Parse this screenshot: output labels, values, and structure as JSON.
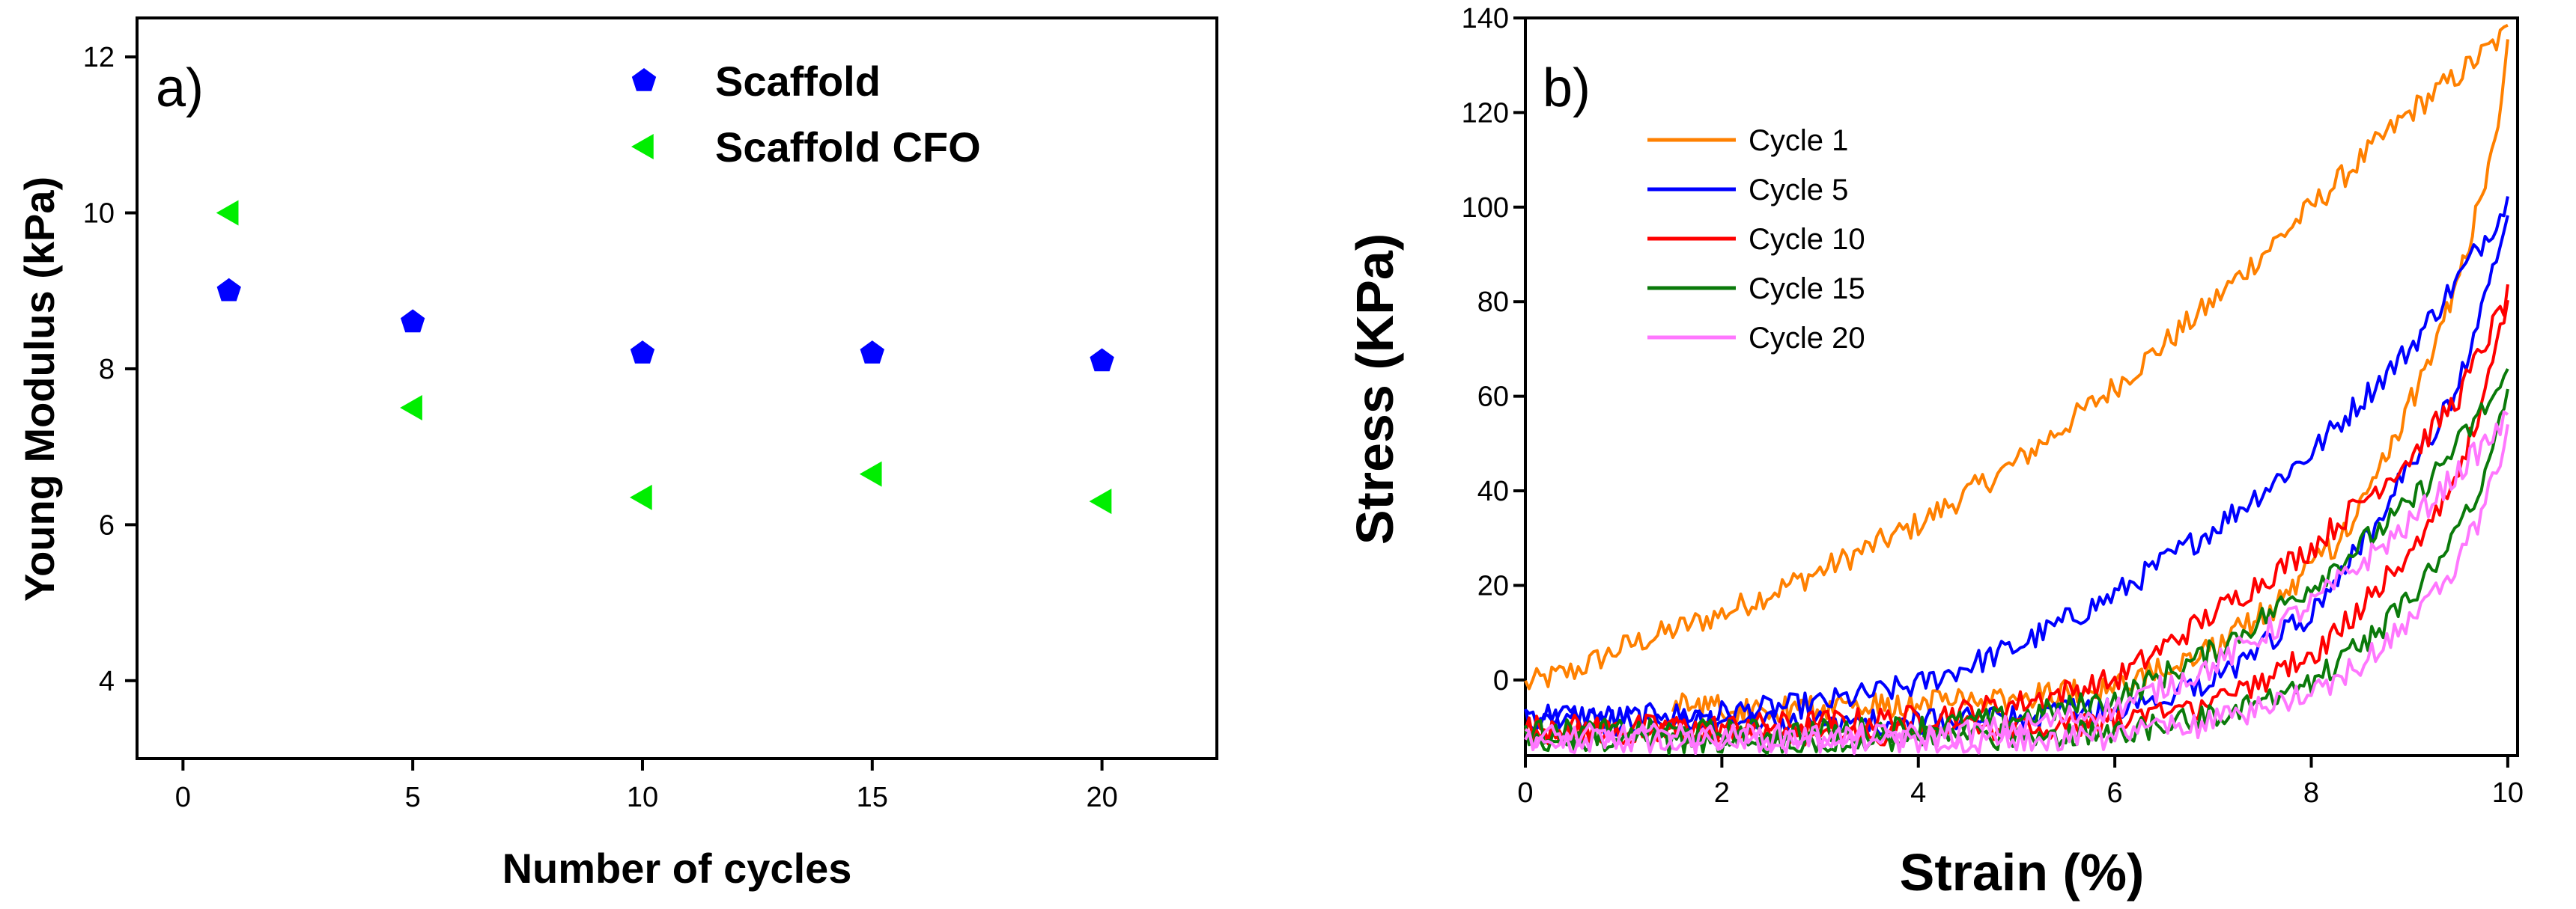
{
  "chart_data": [
    {
      "panel": "a)",
      "type": "scatter",
      "xlabel": "Number of cycles",
      "ylabel": "Young Modulus (kPa)",
      "xlim": [
        -1,
        22.5
      ],
      "ylim": [
        3,
        12.5
      ],
      "xticks": [
        0,
        5,
        10,
        15,
        20
      ],
      "yticks": [
        4,
        6,
        8,
        10,
        12
      ],
      "legend_position": "top-right",
      "series": [
        {
          "name": "Scaffold",
          "marker": "pentagon",
          "color": "#0000ff",
          "x": [
            1,
            5,
            10,
            15,
            20
          ],
          "y": [
            9.0,
            8.6,
            8.2,
            8.2,
            8.1
          ]
        },
        {
          "name": "Scaffold CFO",
          "marker": "triangle-left",
          "color": "#00ee00",
          "x": [
            1,
            5,
            10,
            15,
            20
          ],
          "y": [
            10.0,
            7.5,
            6.35,
            6.65,
            6.3
          ]
        }
      ]
    },
    {
      "panel": "b)",
      "type": "line",
      "xlabel": "Strain (%)",
      "ylabel": "Stress (KPa)",
      "xlim": [
        0,
        10.1
      ],
      "ylim": [
        -16,
        140
      ],
      "xticks": [
        0,
        2,
        4,
        6,
        8,
        10
      ],
      "yticks": [
        0,
        20,
        40,
        60,
        80,
        100,
        120,
        140
      ],
      "legend_position": "top-left",
      "series": [
        {
          "name": "Cycle 1",
          "color": "#ff8000",
          "loading": [
            [
              0,
              -1
            ],
            [
              0.5,
              2
            ],
            [
              1,
              7
            ],
            [
              2,
              14
            ],
            [
              3,
              23
            ],
            [
              4,
              33
            ],
            [
              5,
              46
            ],
            [
              6,
              62
            ],
            [
              7,
              80
            ],
            [
              8,
              100
            ],
            [
              9,
              120
            ],
            [
              9.5,
              128
            ],
            [
              10,
              137
            ]
          ],
          "unloading": [
            [
              10,
              137
            ],
            [
              9.9,
              118
            ],
            [
              9.7,
              100
            ],
            [
              9.5,
              85
            ],
            [
              9.2,
              68
            ],
            [
              8.8,
              48
            ],
            [
              8.3,
              30
            ],
            [
              7.6,
              15
            ],
            [
              7,
              7
            ],
            [
              6,
              -1
            ],
            [
              5,
              -4
            ],
            [
              4,
              -5
            ],
            [
              3,
              -6
            ],
            [
              2,
              -6
            ],
            [
              1.5,
              -5
            ]
          ]
        },
        {
          "name": "Cycle 5",
          "color": "#0000ff",
          "loading": [
            [
              0,
              -7
            ],
            [
              1,
              -8
            ],
            [
              2,
              -7
            ],
            [
              3,
              -5
            ],
            [
              4,
              -1
            ],
            [
              5,
              7
            ],
            [
              6,
              18
            ],
            [
              7,
              32
            ],
            [
              8,
              48
            ],
            [
              9,
              70
            ],
            [
              9.5,
              85
            ],
            [
              10,
              101
            ]
          ],
          "unloading": [
            [
              10,
              101
            ],
            [
              9.9,
              92
            ],
            [
              9.7,
              75
            ],
            [
              9.4,
              58
            ],
            [
              9,
              45
            ],
            [
              8.5,
              28
            ],
            [
              8,
              14
            ],
            [
              7,
              0
            ],
            [
              6,
              -6
            ],
            [
              5,
              -8
            ],
            [
              4,
              -9
            ],
            [
              3,
              -9
            ],
            [
              2,
              -9
            ],
            [
              1,
              -9
            ],
            [
              0,
              -8
            ]
          ]
        },
        {
          "name": "Cycle 10",
          "color": "#ff0000",
          "loading": [
            [
              0,
              -10
            ],
            [
              1,
              -10
            ],
            [
              2,
              -10
            ],
            [
              3,
              -9
            ],
            [
              4,
              -8
            ],
            [
              5,
              -5
            ],
            [
              6,
              0
            ],
            [
              7,
              14
            ],
            [
              8,
              28
            ],
            [
              9,
              47
            ],
            [
              9.5,
              60
            ],
            [
              10,
              81
            ]
          ],
          "unloading": [
            [
              10,
              81
            ],
            [
              9.9,
              70
            ],
            [
              9.7,
              55
            ],
            [
              9.4,
              40
            ],
            [
              9,
              27
            ],
            [
              8.5,
              15
            ],
            [
              8,
              5
            ],
            [
              7,
              -5
            ],
            [
              6,
              -9
            ],
            [
              5,
              -10
            ],
            [
              4,
              -11
            ],
            [
              3,
              -11
            ],
            [
              2,
              -11
            ],
            [
              1,
              -11
            ],
            [
              0,
              -11
            ]
          ]
        },
        {
          "name": "Cycle 15",
          "color": "#0a7a0a",
          "loading": [
            [
              0,
              -11
            ],
            [
              1,
              -11
            ],
            [
              2,
              -11
            ],
            [
              3,
              -11
            ],
            [
              4,
              -10
            ],
            [
              5,
              -8
            ],
            [
              6,
              -4
            ],
            [
              7,
              6
            ],
            [
              8,
              20
            ],
            [
              9,
              37
            ],
            [
              9.5,
              50
            ],
            [
              10,
              64
            ]
          ],
          "unloading": [
            [
              10,
              64
            ],
            [
              9.9,
              52
            ],
            [
              9.7,
              40
            ],
            [
              9.4,
              28
            ],
            [
              9,
              17
            ],
            [
              8.5,
              7
            ],
            [
              8,
              0
            ],
            [
              7,
              -8
            ],
            [
              6,
              -11
            ],
            [
              5,
              -12
            ],
            [
              4,
              -12
            ],
            [
              3,
              -13
            ],
            [
              2,
              -13
            ],
            [
              1,
              -13
            ],
            [
              0,
              -12
            ]
          ]
        },
        {
          "name": "Cycle 20",
          "color": "#ff77ff",
          "loading": [
            [
              0,
              -12
            ],
            [
              1,
              -12
            ],
            [
              2,
              -12
            ],
            [
              3,
              -12
            ],
            [
              4,
              -12
            ],
            [
              5,
              -10
            ],
            [
              6,
              -6
            ],
            [
              7,
              3
            ],
            [
              8,
              16
            ],
            [
              9,
              33
            ],
            [
              9.5,
              44
            ],
            [
              10,
              55
            ]
          ],
          "unloading": [
            [
              10,
              55
            ],
            [
              9.9,
              45
            ],
            [
              9.7,
              33
            ],
            [
              9.4,
              22
            ],
            [
              9,
              12
            ],
            [
              8.5,
              3
            ],
            [
              8,
              -3
            ],
            [
              7,
              -9
            ],
            [
              6,
              -12
            ],
            [
              5,
              -13
            ],
            [
              4,
              -13
            ],
            [
              3,
              -13
            ],
            [
              2,
              -13
            ],
            [
              1,
              -13
            ],
            [
              0,
              -13
            ]
          ]
        }
      ]
    }
  ]
}
